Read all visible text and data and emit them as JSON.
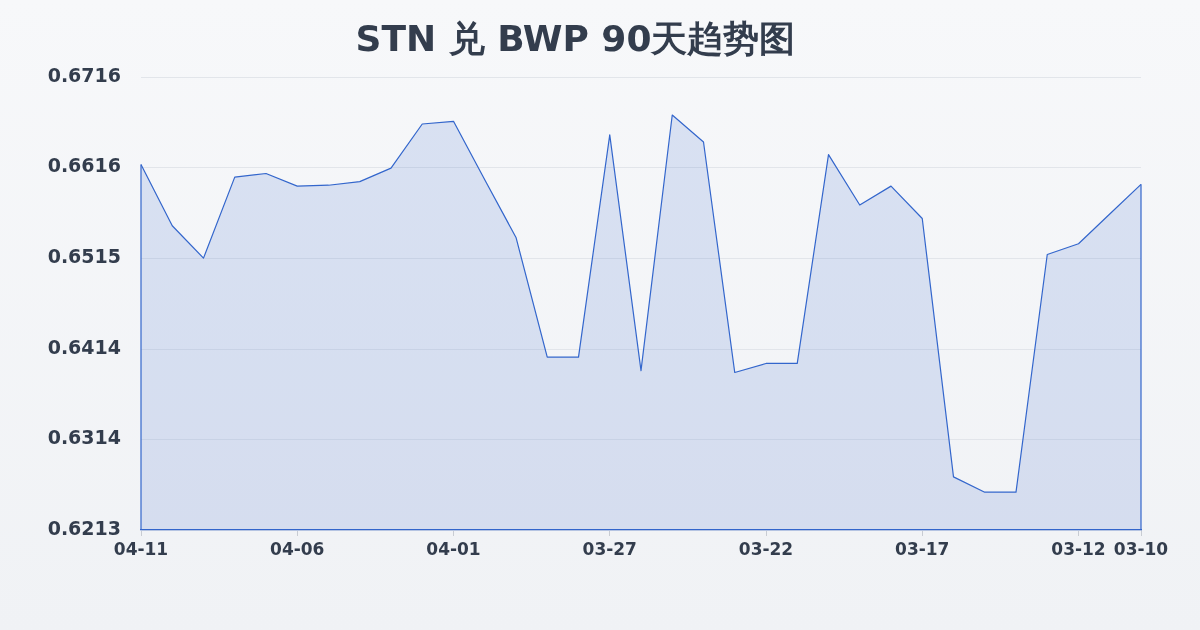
{
  "chart_data": {
    "type": "area",
    "title": "STN 兑 BWP 90天趋势图",
    "categories": [
      "04-11",
      null,
      null,
      null,
      null,
      "04-06",
      null,
      null,
      null,
      null,
      "04-01",
      null,
      null,
      null,
      null,
      "03-27",
      null,
      null,
      null,
      null,
      "03-22",
      null,
      null,
      null,
      null,
      "03-17",
      null,
      null,
      null,
      null,
      "03-12",
      null,
      "03-10"
    ],
    "values": [
      0.6619,
      0.6551,
      0.6515,
      0.6605,
      0.6609,
      0.6595,
      0.6596,
      0.66,
      0.6615,
      0.6664,
      0.6667,
      0.6602,
      0.6538,
      0.6405,
      0.6405,
      0.6652,
      0.639,
      0.6674,
      0.6644,
      0.6388,
      0.6398,
      0.6398,
      0.663,
      0.6574,
      0.6595,
      0.6559,
      0.6272,
      0.6255,
      0.6255,
      0.6519,
      0.6531,
      0.6564,
      0.6597
    ],
    "color": "#3366cc",
    "ylim": [
      0.6213,
      0.6716
    ],
    "yticks": [
      0.6213,
      0.6314,
      0.6414,
      0.6515,
      0.6616,
      0.6716
    ],
    "grid": "y",
    "marker": "none"
  }
}
